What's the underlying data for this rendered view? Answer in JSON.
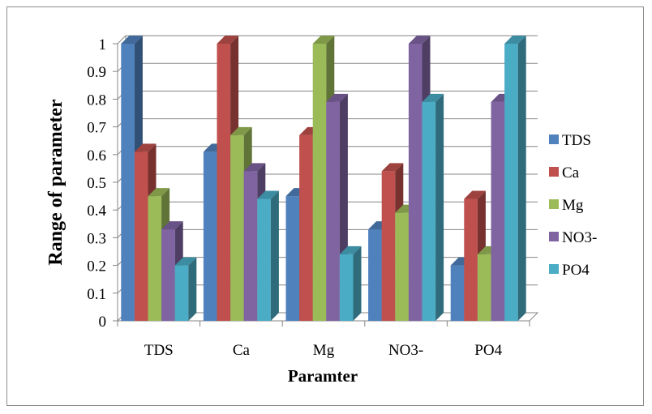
{
  "chart_data": {
    "type": "bar",
    "categories": [
      "TDS",
      "Ca",
      "Mg",
      "NO3-",
      "PO4"
    ],
    "series": [
      {
        "name": "TDS",
        "values": [
          1.0,
          0.61,
          0.45,
          0.33,
          0.2
        ]
      },
      {
        "name": "Ca",
        "values": [
          0.61,
          1.0,
          0.67,
          0.54,
          0.44
        ]
      },
      {
        "name": "Mg",
        "values": [
          0.45,
          0.67,
          1.0,
          0.39,
          0.24
        ]
      },
      {
        "name": "NO3-",
        "values": [
          0.33,
          0.54,
          0.79,
          1.0,
          0.79
        ]
      },
      {
        "name": "PO4",
        "values": [
          0.2,
          0.44,
          0.24,
          0.79,
          1.0
        ]
      }
    ],
    "xlabel": "Paramter",
    "ylabel": "Range of parameter",
    "ylim": [
      0,
      1
    ],
    "yticks": [
      "0",
      "0.1",
      "0.2",
      "0.3",
      "0.4",
      "0.5",
      "0.6",
      "0.7",
      "0.8",
      "0.9",
      "1"
    ],
    "colors": [
      "#4f81bd",
      "#c0504d",
      "#9bbb59",
      "#8064a2",
      "#4bacc6"
    ],
    "grid": true,
    "legend_position": "right",
    "style": "3d-column"
  }
}
